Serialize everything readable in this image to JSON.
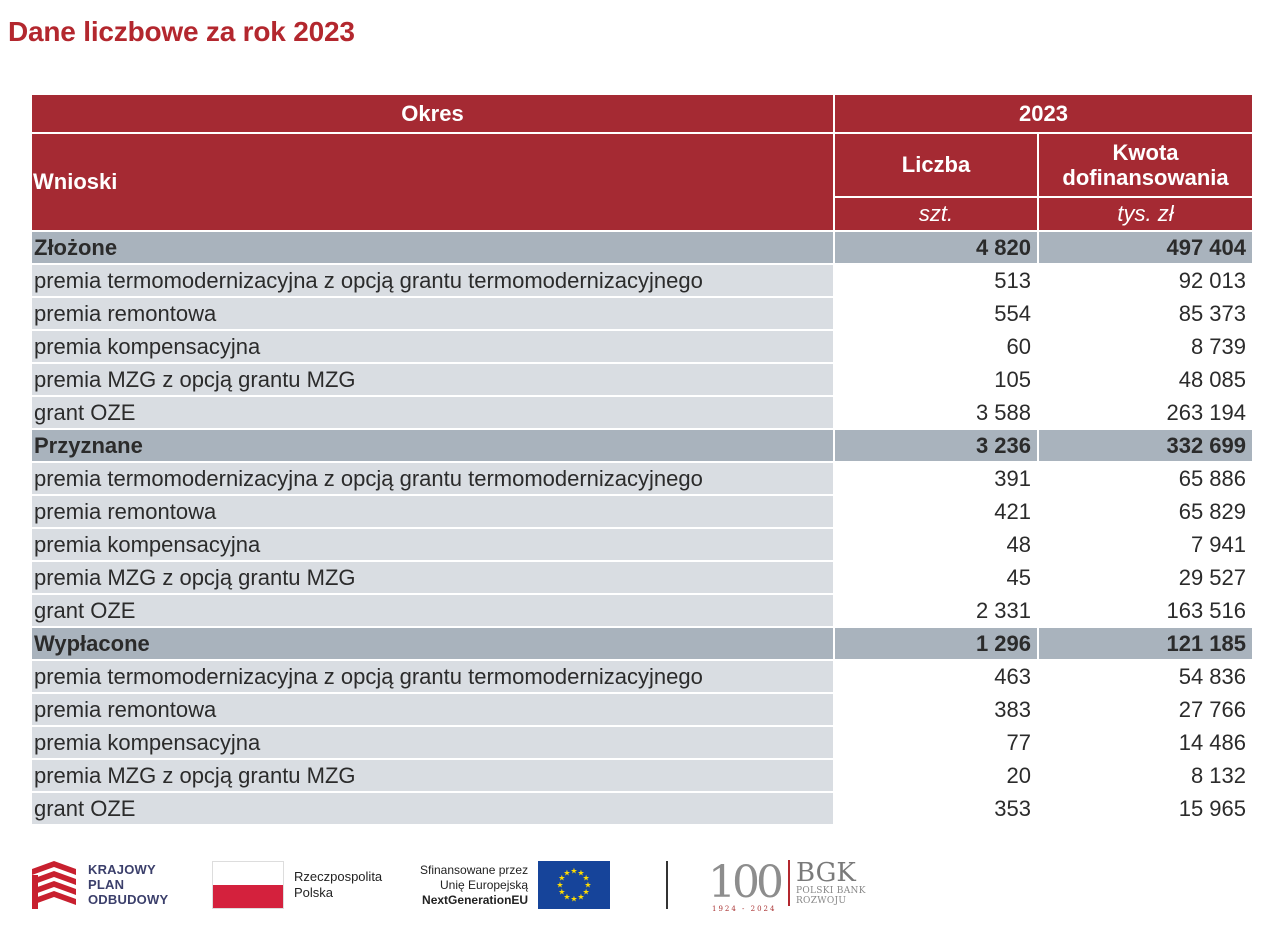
{
  "title": "Dane liczbowe za rok 2023",
  "table": {
    "header": {
      "period_label": "Okres",
      "year": "2023",
      "row_label": "Wnioski",
      "col_count": "Liczba",
      "col_amount_line1": "Kwota",
      "col_amount_line2": "dofinansowania",
      "unit_count": "szt.",
      "unit_amount": "tys. zł"
    },
    "rows": [
      {
        "label": "Złożone",
        "count": "4 820",
        "amount": "497 404",
        "group": true
      },
      {
        "label": "premia termomodernizacyjna z opcją grantu termomodernizacyjnego",
        "count": "513",
        "amount": "92 013"
      },
      {
        "label": "premia remontowa",
        "count": "554",
        "amount": "85 373"
      },
      {
        "label": "premia kompensacyjna",
        "count": "60",
        "amount": "8 739"
      },
      {
        "label": "premia MZG z opcją grantu MZG",
        "count": "105",
        "amount": "48 085"
      },
      {
        "label": "grant OZE",
        "count": "3 588",
        "amount": "263 194"
      },
      {
        "label": "Przyznane",
        "count": "3 236",
        "amount": "332 699",
        "group": true
      },
      {
        "label": "premia termomodernizacyjna z opcją grantu termomodernizacyjnego",
        "count": "391",
        "amount": "65 886"
      },
      {
        "label": "premia remontowa",
        "count": "421",
        "amount": "65 829"
      },
      {
        "label": "premia kompensacyjna",
        "count": "48",
        "amount": "7 941"
      },
      {
        "label": "premia MZG z opcją grantu MZG",
        "count": "45",
        "amount": "29 527"
      },
      {
        "label": "grant OZE",
        "count": "2 331",
        "amount": "163 516"
      },
      {
        "label": "Wypłacone",
        "count": "1 296",
        "amount": "121 185",
        "group": true
      },
      {
        "label": "premia termomodernizacyjna z opcją grantu termomodernizacyjnego",
        "count": "463",
        "amount": "54 836"
      },
      {
        "label": "premia remontowa",
        "count": "383",
        "amount": "27 766"
      },
      {
        "label": "premia kompensacyjna",
        "count": "77",
        "amount": "14 486"
      },
      {
        "label": "premia MZG z opcją grantu MZG",
        "count": "20",
        "amount": "8 132"
      },
      {
        "label": "grant OZE",
        "count": "353",
        "amount": "15 965"
      }
    ]
  },
  "footer": {
    "kpo": [
      "KRAJOWY",
      "PLAN",
      "ODBUDOWY"
    ],
    "rp": [
      "Rzeczpospolita",
      "Polska"
    ],
    "eu": [
      "Sfinansowane przez",
      "Unię Europejską",
      "NextGenerationEU"
    ],
    "bgk_100": "100",
    "bgk_years": "1924 - 2024",
    "bgk_name": "BGK",
    "bgk_sub": [
      "POLSKI BANK",
      "ROZWOJU"
    ]
  },
  "colors": {
    "header_red": "#a52a33",
    "title_red": "#b3272e",
    "group_gray": "#a9b3bd",
    "label_gray": "#d9dde2",
    "eu_blue": "#16449a",
    "eu_star": "#ffdd00",
    "pl_red": "#d4213d"
  },
  "icons": [
    "kpo-logo-icon",
    "polish-flag-icon",
    "eu-flag-icon",
    "bgk-logo-icon"
  ]
}
